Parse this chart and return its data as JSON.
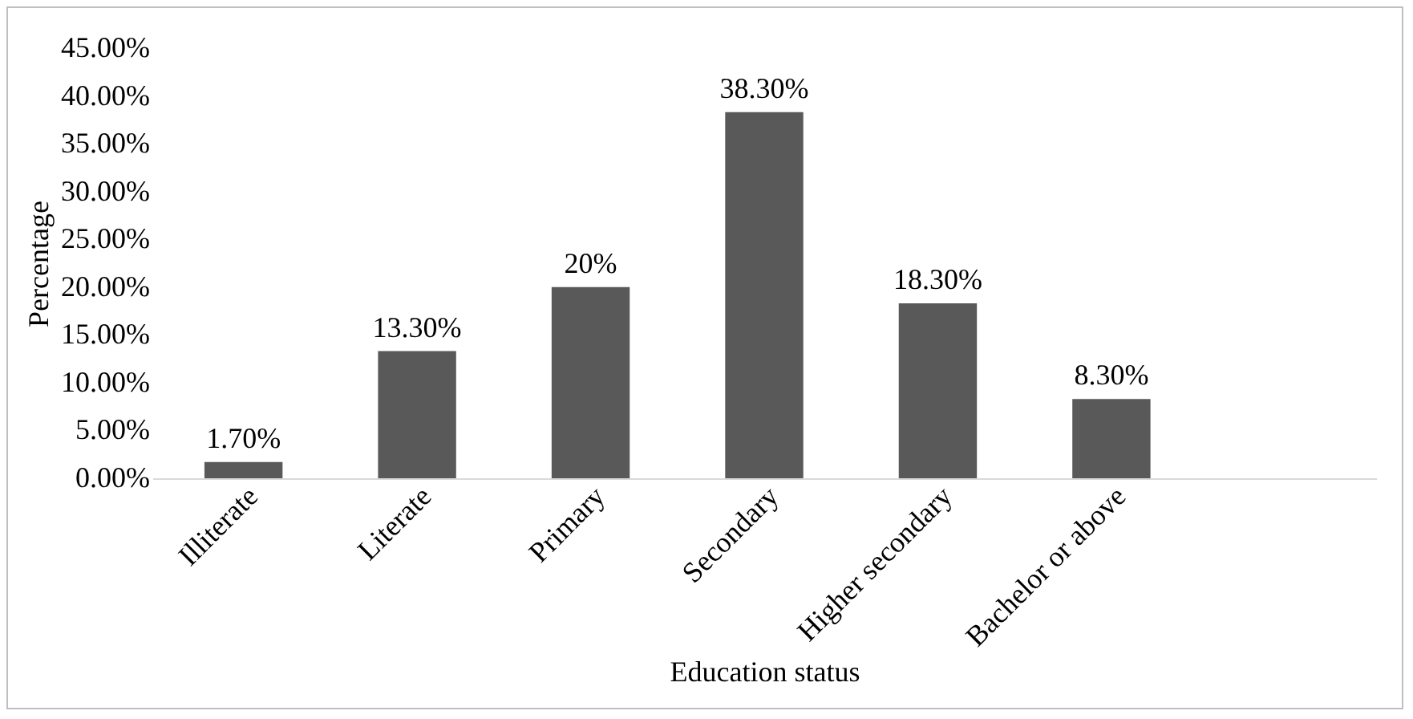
{
  "chart_data": {
    "type": "bar",
    "xlabel": "Education status",
    "ylabel": "Percentage",
    "categories": [
      "Illiterate",
      "Literate",
      "Primary",
      "Secondary",
      "Higher secondary",
      "Bachelor or above",
      null
    ],
    "values": [
      1.7,
      13.3,
      20,
      38.3,
      18.3,
      8.3,
      null
    ],
    "value_labels": [
      "1.70%",
      "13.30%",
      "20%",
      "38.30%",
      "18.30%",
      "8.30%",
      null
    ],
    "color": "#595959",
    "ylim": [
      0,
      45
    ],
    "yticks": [
      {
        "value": 0,
        "label": "0.00%"
      },
      {
        "value": 5,
        "label": "5.00%"
      },
      {
        "value": 10,
        "label": "10.00%"
      },
      {
        "value": 15,
        "label": "15.00%"
      },
      {
        "value": 20,
        "label": "20.00%"
      },
      {
        "value": 25,
        "label": "25.00%"
      },
      {
        "value": 30,
        "label": "30.00%"
      },
      {
        "value": 35,
        "label": "35.00%"
      },
      {
        "value": 40,
        "label": "40.00%"
      },
      {
        "value": 45,
        "label": "45.00%"
      }
    ],
    "grid": false
  }
}
